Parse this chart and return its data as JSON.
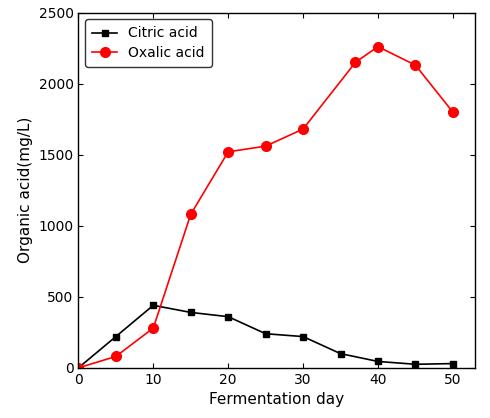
{
  "citric_x": [
    0,
    5,
    10,
    15,
    20,
    25,
    30,
    35,
    40,
    45,
    50
  ],
  "citric_y": [
    0,
    220,
    440,
    390,
    360,
    240,
    220,
    100,
    45,
    25,
    30
  ],
  "oxalic_x": [
    0,
    5,
    10,
    15,
    20,
    25,
    30,
    37,
    40,
    45,
    50
  ],
  "oxalic_y": [
    0,
    80,
    280,
    1080,
    1520,
    1560,
    1680,
    2150,
    2260,
    2130,
    1800
  ],
  "citric_color": "#000000",
  "oxalic_color": "#ff0000",
  "citric_label": "Citric acid",
  "oxalic_label": "Oxalic acid",
  "xlabel": "Fermentation day",
  "ylabel": "Organic acid(mg/L)",
  "xlim": [
    0,
    53
  ],
  "ylim": [
    0,
    2500
  ],
  "xticks": [
    0,
    10,
    20,
    30,
    40,
    50
  ],
  "yticks": [
    0,
    500,
    1000,
    1500,
    2000,
    2500
  ],
  "legend_loc": "upper left",
  "citric_marker": "s",
  "oxalic_marker": "o",
  "marker_size_citric": 5,
  "marker_size_oxalic": 7,
  "linewidth": 1.2,
  "tick_labelsize": 10,
  "axis_labelsize": 11,
  "legend_fontsize": 10
}
